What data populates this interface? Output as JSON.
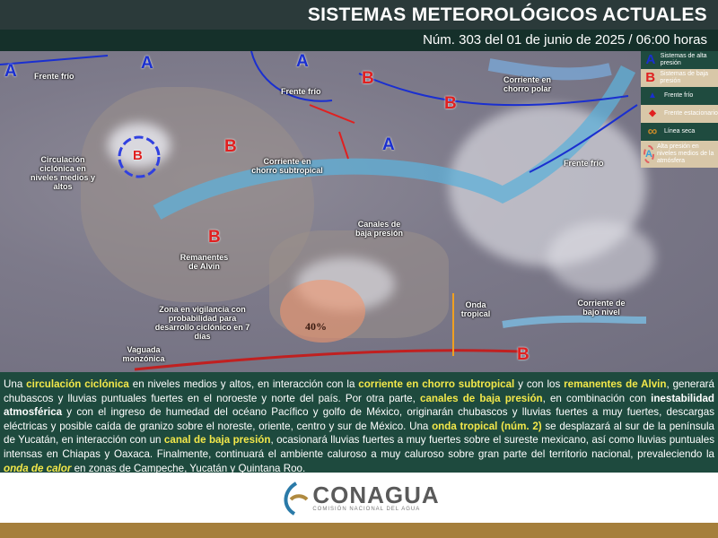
{
  "header": {
    "title": "SISTEMAS METEOROLÓGICOS ACTUALES",
    "subtitle": "Núm. 303 del 01 de junio de 2025 / 06:00 horas"
  },
  "legend": [
    {
      "symbol": "A",
      "label": "Sistemas de alta presión",
      "color": "#1a2fd0"
    },
    {
      "symbol": "B",
      "label": "Sistemas de baja presión",
      "color": "#e02020"
    },
    {
      "symbol": "▲",
      "label": "Frente frío",
      "color": "#1a2fd0"
    },
    {
      "symbol": "◆",
      "label": "Frente estacionario",
      "color": "#e02020"
    },
    {
      "symbol": "∞",
      "label": "Línea seca",
      "color": "#c88a2a"
    },
    {
      "symbol": "A",
      "label": "Alta presión en niveles medios de la atmósfera",
      "color": "#3aa0d8"
    }
  ],
  "map_labels": {
    "frente_frio_1": "Frente frío",
    "frente_frio_2": "Frente frío",
    "frente_frio_3": "Frente frío",
    "chorro_polar": "Corriente en chorro polar",
    "circulacion": "Circulación ciclónica en niveles medios y altos",
    "chorro_subtropical": "Corriente en chorro subtropical",
    "canales": "Canales de baja presión",
    "remanentes": "Remanentes de Alvin",
    "zona_vigilancia": "Zona en vigilancia con probabilidad para desarrollo ciclónico en 7 días",
    "probabilidad": "40%",
    "onda": "Onda tropical",
    "bajo_nivel": "Corriente de bajo nivel",
    "vaguada": "Vaguada monzónica"
  },
  "systems": {
    "high": "A",
    "low": "B"
  },
  "bulletin": [
    {
      "t": "Una "
    },
    {
      "t": "circulación ciclónica",
      "h": 1
    },
    {
      "t": " en niveles medios y altos, en interacción con la "
    },
    {
      "t": "corriente en chorro subtropical",
      "h": 1
    },
    {
      "t": " y con los "
    },
    {
      "t": "remanentes de Alvin",
      "h": 1
    },
    {
      "t": ", generará chubascos y lluvias puntuales fuertes en el noroeste y norte del país. Por otra parte, "
    },
    {
      "t": "canales de baja presión",
      "h": 1
    },
    {
      "t": ", en combinación con "
    },
    {
      "t": "inestabilidad atmosférica",
      "w": 1
    },
    {
      "t": " y con el ingreso de humedad del océano Pacífico y golfo de México, originarán chubascos y lluvias fuertes a muy fuertes, descargas eléctricas y posible caída de granizo sobre el noreste, oriente, centro y sur de México. Una "
    },
    {
      "t": "onda tropical (núm. 2)",
      "h": 1
    },
    {
      "t": " se desplazará al sur de la península de Yucatán, en interacción con un "
    },
    {
      "t": "canal de baja presión",
      "h": 1
    },
    {
      "t": ", ocasionará lluvias fuertes a muy fuertes sobre el sureste mexicano, así como lluvias puntuales intensas en Chiapas y Oaxaca. Finalmente, continuará el ambiente caluroso a muy caluroso sobre gran parte del territorio nacional, prevaleciendo la "
    },
    {
      "t": "onda de calor",
      "h": 1,
      "i": 1
    },
    {
      "t": " en zonas de Campeche, Yucatán y Quintana Roo."
    }
  ],
  "logo": {
    "name": "CONAGUA",
    "tagline": "COMISIÓN NACIONAL DEL AGUA"
  }
}
